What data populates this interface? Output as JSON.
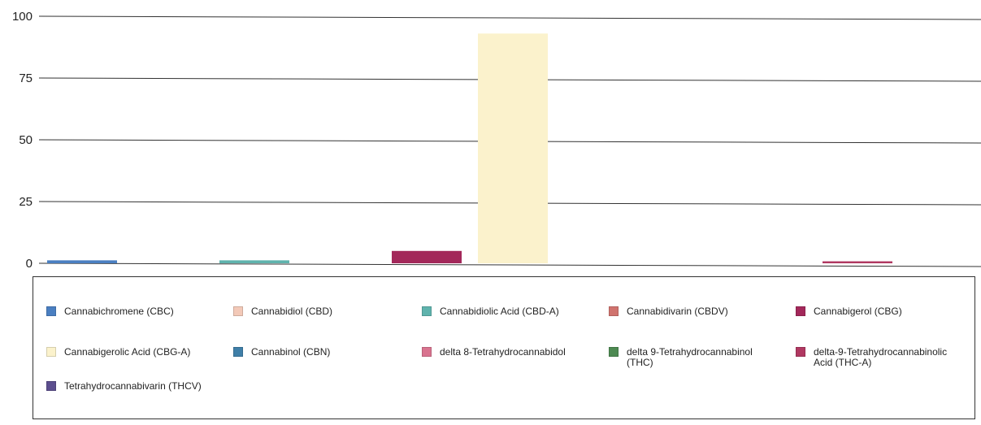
{
  "chart_data": {
    "type": "bar",
    "title": "",
    "xlabel": "",
    "ylabel": "",
    "ylim": [
      0,
      100
    ],
    "yticks": [
      "0",
      "25",
      "50",
      "75",
      "100"
    ],
    "grid": true,
    "legend_position": "bottom",
    "series": [
      {
        "name": "Cannabichromene (CBC)",
        "value": 1.2,
        "color": "#4a7fc1"
      },
      {
        "name": "Cannabidiol (CBD)",
        "value": 0.0,
        "color": "#f3c9b8"
      },
      {
        "name": "Cannabidiolic Acid (CBD-A)",
        "value": 1.2,
        "color": "#5fb3ad"
      },
      {
        "name": "Cannabidivarin (CBDV)",
        "value": 0.0,
        "color": "#d0736e"
      },
      {
        "name": "Cannabigerol (CBG)",
        "value": 5.0,
        "color": "#a3285a"
      },
      {
        "name": "Cannabigerolic Acid (CBG-A)",
        "value": 93.0,
        "color": "#fbf2cc"
      },
      {
        "name": "Cannabinol (CBN)",
        "value": 0.0,
        "color": "#3f7fa8"
      },
      {
        "name": "delta 8-Tetrahydrocannabidol",
        "value": 0.0,
        "color": "#d9738f"
      },
      {
        "name": "delta 9-Tetrahydrocannabinol (THC)",
        "value": 0.0,
        "color": "#4d8a52"
      },
      {
        "name": "delta-9-Tetrahydrocannabinolic Acid (THC-A)",
        "value": 0.8,
        "color": "#b03861"
      },
      {
        "name": "Tetrahydrocannabivarin (THCV)",
        "value": 0.0,
        "color": "#5c4e8e"
      }
    ]
  }
}
